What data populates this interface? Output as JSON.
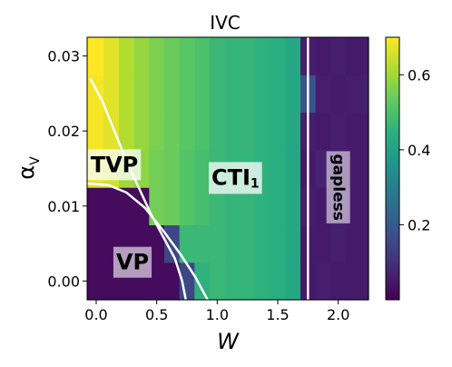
{
  "chart_data": {
    "type": "heatmap",
    "title": "IVC",
    "xlabel": "W",
    "ylabel": "α",
    "ylabel_subscript": "V",
    "xlim": [
      -0.075,
      2.25
    ],
    "ylim": [
      -0.0025,
      0.0325
    ],
    "x_ticks": [
      0.0,
      0.5,
      1.0,
      1.5,
      2.0
    ],
    "x_tick_labels": [
      "0.0",
      "0.5",
      "1.0",
      "1.5",
      "2.0"
    ],
    "y_ticks": [
      0.0,
      0.01,
      0.02,
      0.03
    ],
    "y_tick_labels": [
      "0.00",
      "0.01",
      "0.02",
      "0.03"
    ],
    "colormap": "viridis",
    "colorbar": {
      "range": [
        0.0,
        0.7
      ],
      "ticks": [
        0.2,
        0.4,
        0.6
      ],
      "tick_labels": [
        "0.2",
        "0.4",
        "0.6"
      ]
    },
    "grid": false,
    "x_cells": [
      0.0,
      0.125,
      0.25,
      0.375,
      0.5,
      0.625,
      0.75,
      0.875,
      1.0,
      1.125,
      1.25,
      1.375,
      1.5,
      1.625,
      1.75,
      1.875,
      2.0,
      2.125
    ],
    "y_cells": [
      0.0,
      0.005,
      0.01,
      0.015,
      0.02,
      0.025,
      0.03
    ],
    "z": [
      [
        0.02,
        0.02,
        0.02,
        0.02,
        0.02,
        0.02,
        0.15,
        0.45,
        0.47,
        0.46,
        0.46,
        0.45,
        0.44,
        0.42,
        0.05,
        0.06,
        0.05,
        0.05
      ],
      [
        0.02,
        0.02,
        0.02,
        0.02,
        0.02,
        0.15,
        0.47,
        0.47,
        0.47,
        0.46,
        0.46,
        0.45,
        0.44,
        0.42,
        0.05,
        0.05,
        0.06,
        0.05
      ],
      [
        0.02,
        0.02,
        0.02,
        0.02,
        0.55,
        0.54,
        0.51,
        0.49,
        0.47,
        0.46,
        0.46,
        0.45,
        0.44,
        0.42,
        0.06,
        0.05,
        0.07,
        0.05
      ],
      [
        0.67,
        0.65,
        0.6,
        0.58,
        0.55,
        0.54,
        0.51,
        0.49,
        0.47,
        0.46,
        0.46,
        0.45,
        0.44,
        0.42,
        0.05,
        0.07,
        0.05,
        0.05
      ],
      [
        0.69,
        0.67,
        0.62,
        0.59,
        0.56,
        0.54,
        0.52,
        0.5,
        0.47,
        0.46,
        0.46,
        0.45,
        0.44,
        0.42,
        0.06,
        0.05,
        0.06,
        0.05
      ],
      [
        0.69,
        0.67,
        0.62,
        0.59,
        0.56,
        0.54,
        0.52,
        0.5,
        0.47,
        0.46,
        0.46,
        0.45,
        0.44,
        0.42,
        0.18,
        0.06,
        0.05,
        0.06
      ],
      [
        0.7,
        0.67,
        0.62,
        0.59,
        0.56,
        0.54,
        0.52,
        0.5,
        0.47,
        0.46,
        0.46,
        0.45,
        0.44,
        0.42,
        0.06,
        0.05,
        0.06,
        0.05
      ]
    ],
    "phase_boundary_lines": [
      {
        "color": "#ffffff",
        "points": [
          [
            -0.05,
            0.027
          ],
          [
            0.05,
            0.024
          ],
          [
            0.15,
            0.02
          ],
          [
            0.25,
            0.016
          ],
          [
            0.35,
            0.0125
          ],
          [
            0.45,
            0.009
          ],
          [
            0.55,
            0.006
          ],
          [
            0.65,
            0.003
          ],
          [
            0.71,
            0.0
          ],
          [
            0.74,
            -0.0025
          ]
        ]
      },
      {
        "color": "#ffffff",
        "points": [
          [
            -0.075,
            0.013
          ],
          [
            0.1,
            0.0128
          ],
          [
            0.25,
            0.0118
          ],
          [
            0.4,
            0.0098
          ],
          [
            0.55,
            0.0068
          ],
          [
            0.7,
            0.0035
          ],
          [
            0.82,
            0.0005
          ],
          [
            0.92,
            -0.0025
          ]
        ]
      },
      {
        "color": "#ffffff",
        "points": [
          [
            1.75,
            0.0325
          ],
          [
            1.75,
            -0.0025
          ]
        ]
      }
    ],
    "annotations": [
      {
        "text": "TVP",
        "x": 0.15,
        "y": 0.0155,
        "size": 24,
        "rotation": 0,
        "box": "rgba(255,255,255,0.75)"
      },
      {
        "text": "CTI",
        "subscript": "1",
        "x": 1.15,
        "y": 0.0138,
        "size": 24,
        "rotation": 0,
        "box": "rgba(255,255,255,0.75)"
      },
      {
        "text": "VP",
        "x": 0.3,
        "y": 0.0025,
        "size": 24,
        "rotation": 0,
        "box": "rgba(255,255,255,0.6)"
      },
      {
        "text": "gapless",
        "x": 2.0,
        "y": 0.0125,
        "size": 17,
        "rotation": 90,
        "box": "rgba(255,255,255,0.55)"
      }
    ]
  }
}
